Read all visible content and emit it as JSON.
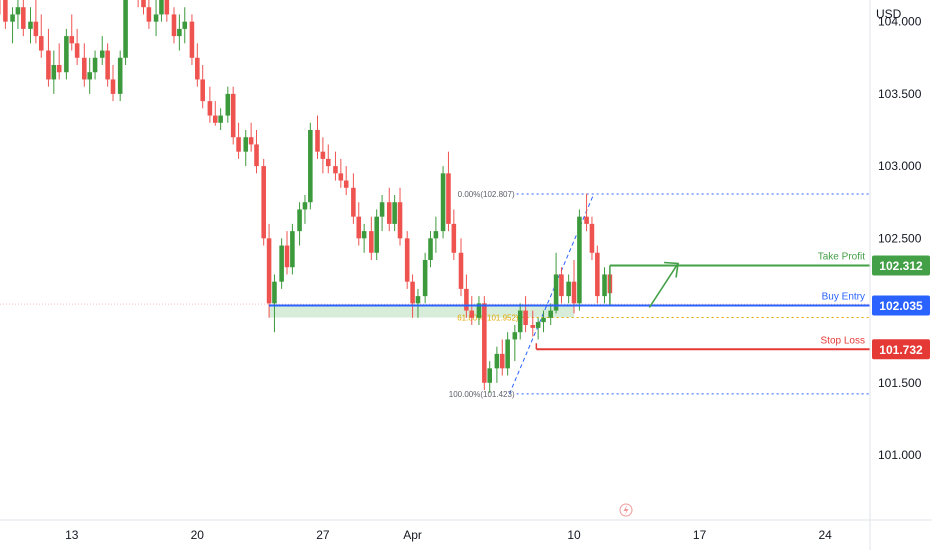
{
  "currency_label": "USD",
  "colors": {
    "bull": "#26a69a",
    "bull_strong": "#3c9a3c",
    "bear": "#ef5350",
    "entry": "#2962ff",
    "take_profit": "#43a047",
    "stop_loss": "#e53935",
    "fib": "#2962ff",
    "fib_618": "#e0a800",
    "zone": "#c8e6c9",
    "axis_text": "#131722",
    "grid": "#e0e3eb"
  },
  "chart_data": {
    "type": "candlestick",
    "title": "",
    "xlabel": "",
    "ylabel": "USD",
    "ylim": [
      100.55,
      104.15
    ],
    "y_ticks": [
      "101.000",
      "101.500",
      "102.000",
      "102.500",
      "103.000",
      "103.500",
      "104.000"
    ],
    "x_ticks": [
      {
        "label": "13",
        "day": 13
      },
      {
        "label": "20",
        "day": 20
      },
      {
        "label": "27",
        "day": 27
      },
      {
        "label": "Apr",
        "day": 32
      },
      {
        "label": "10",
        "day": 41
      },
      {
        "label": "17",
        "day": 48
      },
      {
        "label": "24",
        "day": 55
      }
    ],
    "x_range": [
      9,
      57.5
    ],
    "levels": [
      {
        "name": "Take Profit",
        "value": 102.312,
        "label": "102.312",
        "color": "#43a047"
      },
      {
        "name": "Buy Entry",
        "value": 102.035,
        "label": "102.035",
        "color": "#2962ff"
      },
      {
        "name": "Stop Loss",
        "value": 101.732,
        "label": "101.732",
        "color": "#e53935"
      }
    ],
    "fibonacci": [
      {
        "label": "0.00%(102.807)",
        "value": 102.807
      },
      {
        "label": "61.80%(101.952)",
        "value": 101.952
      },
      {
        "label": "100.00%(101.423)",
        "value": 101.423
      }
    ],
    "candles": [
      [
        9.0,
        104.2,
        104.25,
        104.05,
        104.15
      ],
      [
        9.3,
        104.15,
        104.2,
        103.95,
        104.0
      ],
      [
        9.7,
        104.0,
        104.1,
        103.85,
        104.05
      ],
      [
        10.0,
        104.05,
        104.15,
        103.95,
        104.1
      ],
      [
        10.3,
        104.1,
        104.2,
        103.9,
        103.95
      ],
      [
        10.7,
        103.95,
        104.1,
        103.85,
        104.0
      ],
      [
        11.0,
        104.0,
        104.15,
        103.85,
        103.9
      ],
      [
        11.3,
        103.9,
        104.05,
        103.75,
        103.8
      ],
      [
        11.7,
        103.8,
        103.95,
        103.55,
        103.6
      ],
      [
        12.0,
        103.6,
        103.8,
        103.5,
        103.7
      ],
      [
        12.3,
        103.7,
        103.85,
        103.6,
        103.65
      ],
      [
        12.7,
        103.65,
        103.95,
        103.6,
        103.9
      ],
      [
        13.0,
        103.9,
        104.05,
        103.8,
        103.85
      ],
      [
        13.3,
        103.85,
        103.95,
        103.7,
        103.75
      ],
      [
        13.7,
        103.75,
        103.85,
        103.55,
        103.6
      ],
      [
        14.0,
        103.6,
        103.75,
        103.5,
        103.65
      ],
      [
        14.3,
        103.65,
        103.8,
        103.6,
        103.75
      ],
      [
        14.7,
        103.75,
        103.9,
        103.7,
        103.8
      ],
      [
        15.0,
        103.8,
        103.85,
        103.55,
        103.6
      ],
      [
        15.3,
        103.6,
        103.7,
        103.45,
        103.5
      ],
      [
        15.7,
        103.5,
        103.8,
        103.45,
        103.75
      ],
      [
        16.0,
        103.75,
        104.3,
        103.7,
        104.25
      ],
      [
        16.3,
        104.25,
        104.35,
        104.15,
        104.2
      ],
      [
        16.7,
        104.2,
        104.3,
        104.1,
        104.15
      ],
      [
        17.0,
        104.15,
        104.25,
        104.05,
        104.1
      ],
      [
        17.3,
        104.1,
        104.2,
        103.95,
        104.0
      ],
      [
        17.7,
        104.0,
        104.15,
        103.9,
        104.05
      ],
      [
        18.0,
        104.05,
        104.2,
        104.0,
        104.15
      ],
      [
        18.3,
        104.15,
        104.25,
        104.0,
        104.05
      ],
      [
        18.7,
        104.05,
        104.1,
        103.85,
        103.9
      ],
      [
        19.0,
        103.9,
        104.05,
        103.8,
        103.95
      ],
      [
        19.3,
        103.95,
        104.1,
        103.85,
        104.0
      ],
      [
        19.7,
        104.0,
        104.05,
        103.7,
        103.75
      ],
      [
        20.0,
        103.75,
        103.85,
        103.55,
        103.6
      ],
      [
        20.3,
        103.6,
        103.7,
        103.4,
        103.45
      ],
      [
        20.7,
        103.45,
        103.55,
        103.3,
        103.35
      ],
      [
        21.0,
        103.35,
        103.45,
        103.28,
        103.3
      ],
      [
        21.3,
        103.3,
        103.4,
        103.25,
        103.35
      ],
      [
        21.7,
        103.35,
        103.55,
        103.3,
        103.5
      ],
      [
        22.0,
        103.5,
        103.55,
        103.15,
        103.2
      ],
      [
        22.3,
        103.2,
        103.3,
        103.05,
        103.1
      ],
      [
        22.7,
        103.1,
        103.25,
        103.0,
        103.2
      ],
      [
        23.0,
        103.2,
        103.3,
        103.1,
        103.15
      ],
      [
        23.3,
        103.15,
        103.25,
        102.95,
        103.0
      ],
      [
        23.7,
        103.0,
        103.05,
        102.45,
        102.5
      ],
      [
        24.0,
        102.5,
        102.6,
        101.95,
        102.05
      ],
      [
        24.3,
        102.05,
        102.25,
        101.85,
        102.2
      ],
      [
        24.7,
        102.2,
        102.5,
        102.15,
        102.45
      ],
      [
        25.0,
        102.45,
        102.55,
        102.25,
        102.3
      ],
      [
        25.3,
        102.3,
        102.6,
        102.25,
        102.55
      ],
      [
        25.7,
        102.55,
        102.75,
        102.45,
        102.7
      ],
      [
        26.0,
        102.7,
        102.8,
        102.6,
        102.75
      ],
      [
        26.3,
        102.75,
        103.3,
        102.7,
        103.25
      ],
      [
        26.7,
        103.25,
        103.35,
        103.05,
        103.1
      ],
      [
        27.0,
        103.1,
        103.2,
        102.95,
        103.05
      ],
      [
        27.3,
        103.05,
        103.15,
        102.95,
        103.0
      ],
      [
        27.7,
        103.0,
        103.1,
        102.9,
        102.95
      ],
      [
        28.0,
        102.95,
        103.05,
        102.85,
        102.9
      ],
      [
        28.3,
        102.9,
        103.0,
        102.8,
        102.85
      ],
      [
        28.7,
        102.85,
        102.95,
        102.6,
        102.65
      ],
      [
        29.0,
        102.65,
        102.75,
        102.45,
        102.5
      ],
      [
        29.3,
        102.5,
        102.6,
        102.4,
        102.55
      ],
      [
        29.7,
        102.55,
        102.65,
        102.35,
        102.4
      ],
      [
        30.0,
        102.4,
        102.7,
        102.35,
        102.65
      ],
      [
        30.3,
        102.65,
        102.8,
        102.55,
        102.75
      ],
      [
        30.7,
        102.75,
        102.85,
        102.55,
        102.6
      ],
      [
        31.0,
        102.6,
        102.8,
        102.55,
        102.75
      ],
      [
        31.3,
        102.75,
        102.85,
        102.45,
        102.5
      ],
      [
        31.7,
        102.5,
        102.55,
        102.15,
        102.2
      ],
      [
        32.0,
        102.2,
        102.25,
        101.95,
        102.05
      ],
      [
        32.3,
        102.05,
        102.15,
        101.95,
        102.1
      ],
      [
        32.7,
        102.1,
        102.4,
        102.05,
        102.35
      ],
      [
        33.0,
        102.35,
        102.55,
        102.3,
        102.5
      ],
      [
        33.3,
        102.5,
        102.65,
        102.4,
        102.55
      ],
      [
        33.7,
        102.55,
        103.0,
        102.5,
        102.95
      ],
      [
        34.0,
        102.95,
        103.1,
        102.55,
        102.6
      ],
      [
        34.3,
        102.6,
        102.7,
        102.35,
        102.4
      ],
      [
        34.7,
        102.4,
        102.5,
        102.1,
        102.15
      ],
      [
        35.0,
        102.15,
        102.25,
        101.95,
        102.0
      ],
      [
        35.3,
        102.0,
        102.1,
        101.9,
        101.95
      ],
      [
        35.7,
        101.95,
        102.1,
        101.9,
        102.05
      ],
      [
        36.0,
        102.05,
        102.1,
        101.45,
        101.5
      ],
      [
        36.3,
        101.5,
        101.65,
        101.43,
        101.6
      ],
      [
        36.7,
        101.6,
        101.75,
        101.5,
        101.7
      ],
      [
        37.0,
        101.7,
        101.8,
        101.55,
        101.6
      ],
      [
        37.3,
        101.6,
        101.85,
        101.55,
        101.8
      ],
      [
        37.7,
        101.8,
        101.9,
        101.65,
        101.85
      ],
      [
        38.0,
        101.85,
        102.05,
        101.8,
        102.0
      ],
      [
        38.3,
        102.0,
        102.1,
        101.85,
        101.9
      ],
      [
        38.7,
        101.9,
        102.0,
        101.82,
        101.88
      ],
      [
        39.0,
        101.88,
        101.95,
        101.8,
        101.92
      ],
      [
        39.3,
        101.92,
        102.0,
        101.85,
        101.95
      ],
      [
        39.7,
        101.95,
        102.05,
        101.9,
        102.0
      ],
      [
        40.0,
        102.0,
        102.4,
        101.98,
        102.25
      ],
      [
        40.3,
        102.25,
        102.3,
        102.05,
        102.1
      ],
      [
        40.7,
        102.1,
        102.25,
        102.05,
        102.2
      ],
      [
        41.0,
        102.2,
        102.35,
        101.98,
        102.05
      ],
      [
        41.3,
        102.05,
        102.7,
        102.0,
        102.65
      ],
      [
        41.7,
        102.65,
        102.81,
        102.55,
        102.6
      ],
      [
        42.0,
        102.6,
        102.65,
        102.35,
        102.4
      ],
      [
        42.3,
        102.4,
        102.45,
        102.05,
        102.1
      ],
      [
        42.7,
        102.1,
        102.3,
        102.05,
        102.25
      ],
      [
        43.0,
        102.25,
        102.3,
        102.05,
        102.12
      ]
    ]
  }
}
